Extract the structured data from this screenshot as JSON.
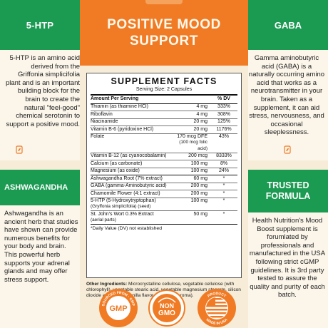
{
  "banner": {
    "line1": "POSITIVE MOOD",
    "line2": "SUPPORT"
  },
  "cards": {
    "htp": {
      "title": "5-HTP",
      "text": "5-HTP is an amino acid derived from the Griffonia simplicifolia plant and is an important building block for the brain to create the natural \"feel-good\" chemical serotonin to support a positive mood."
    },
    "gaba": {
      "title": "GABA",
      "text": "Gamma aminobutyric acid (GABA) is a naturally occurring amino acid that works as a neurotransmitter in your brain. Taken as a supplement, it can aid stress, nervousness, and occasional sleeplessness."
    },
    "ashwagandha": {
      "title": "ASHWAGANDHA",
      "text": "Ashwagandha is an ancient herb that studies have shown can provide numerous benefits for your body and brain. This powerful herb supports your adrenal glands and may offer stress support."
    },
    "trusted": {
      "title_line1": "TRUSTED",
      "title_line2": "FORMULA",
      "text": "Health Nutrition's Mood Boost supplement is forumlated by professionals and manufactured in the USA following strict cGMP guidelines. It is 3rd party tested to assure the quality and purity of each batch."
    }
  },
  "facts": {
    "title": "SUPPLEMENT FACTS",
    "serving": "Serving Size: 2 Capsules",
    "header": {
      "name": "Amount Per Serving",
      "amount": "",
      "dv": "% DV"
    },
    "rows": [
      {
        "name": "Thiamin (as thiamine HCl)",
        "amount": "4 mg",
        "dv": "333%"
      },
      {
        "name": "Riboflavin",
        "amount": "4 mg",
        "dv": "308%"
      },
      {
        "name": "Niacinamide",
        "amount": "20 mg",
        "dv": "125%"
      },
      {
        "name": "Vitamin B-6 (pyridoxine HCl)",
        "amount": "20 mg",
        "dv": "1176%"
      },
      {
        "name": "Folate",
        "amount": "170 mcg DFE",
        "sub": "(100 mcg folic acid)",
        "dv": "43%"
      },
      {
        "name": "Vitamin B-12 (as cyanocobalamin)",
        "amount": "200 mcg",
        "dv": "8333%"
      },
      {
        "name": "Calcium (as carbonate)",
        "amount": "100 mg",
        "dv": "8%"
      },
      {
        "name": "Magnesium (as oxide)",
        "amount": "100 mg",
        "dv": "24%"
      }
    ],
    "rows2": [
      {
        "name": "Ashwagandha Root (7% extract)",
        "amount": "60 mg",
        "dv": "*"
      },
      {
        "name": "GABA (gamma-Aminobutyric acid)",
        "amount": "200 mg",
        "dv": "*"
      },
      {
        "name": "Chamomile Flower (4:1 extract)",
        "amount": "200 mg",
        "dv": "*"
      },
      {
        "name": "5-HTP (5-Hydroxytryptophan)",
        "sub": "(Gryffonia simplicifolia) (seed)",
        "amount": "100 mg",
        "dv": "*"
      },
      {
        "name": "St. John's Wort 0.3% Extract",
        "sub": "(aerial parts)",
        "amount": "50 mg",
        "dv": "*"
      }
    ],
    "footnote": "*Daily Value (DV) not established"
  },
  "other_ingredients": {
    "label": "Other Ingredients:",
    "text": "Microcrystalline cellulose, vegetable cellulose (with chlorophyll), vegetable stearic acid, vegetable magnesium stearate, silicon dioxide and natural vanilla flavor (added for aroma)."
  },
  "badges": {
    "gmp": {
      "ring_text": "SOURCED FROM · GMP CERTIFIED FACILITY",
      "center": "GMP"
    },
    "nongmo": {
      "line1": "NON",
      "line2": "GMO"
    },
    "usa": {
      "ring_text": "PRODUCT · MADE IN USA",
      "top": "PRODUCT",
      "bottom": "MADE IN USA"
    }
  },
  "colors": {
    "green": "#1b9a52",
    "orange": "#f07b24",
    "cream": "#f7ecd7"
  },
  "icons": [
    "leaf-icon"
  ]
}
